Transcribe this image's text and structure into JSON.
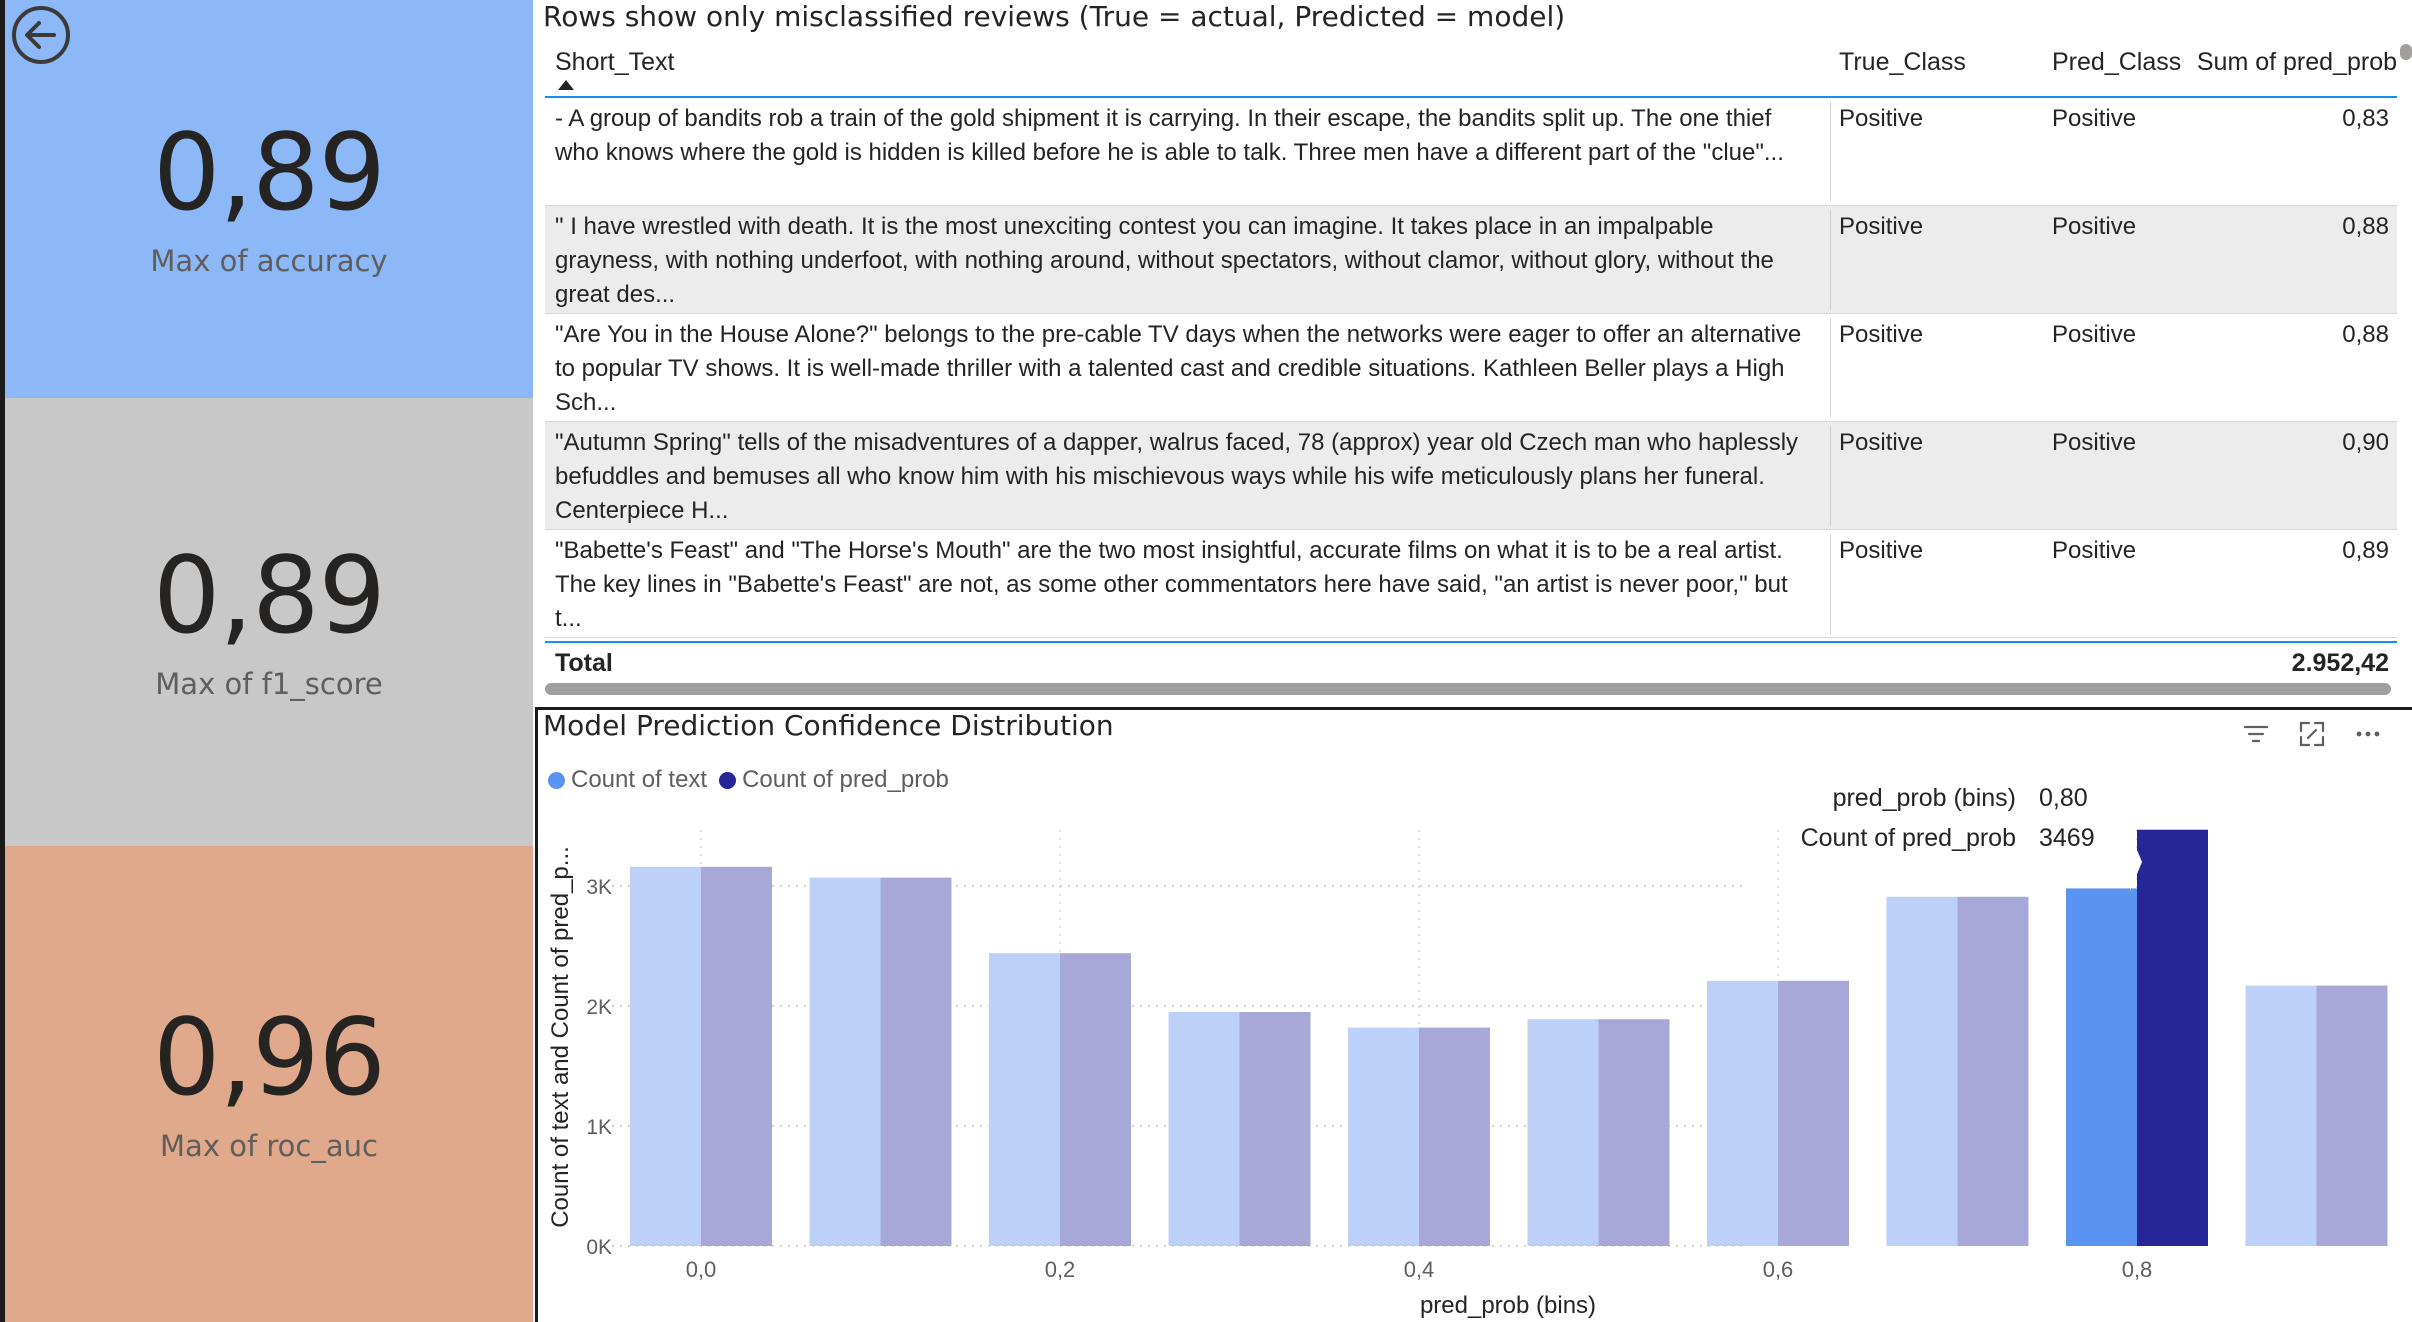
{
  "kpis": [
    {
      "value": "0,89",
      "label": "Max of accuracy"
    },
    {
      "value": "0,89",
      "label": "Max of f1_score"
    },
    {
      "value": "0,96",
      "label": "Max of roc_auc"
    }
  ],
  "table": {
    "title": "Rows show only misclassified reviews (True = actual, Predicted = model)",
    "columns": [
      "Short_Text",
      "True_Class",
      "Pred_Class",
      "Sum of pred_prob"
    ],
    "rows": [
      {
        "text": "- A group of bandits rob a train of the gold shipment it is carrying. In their escape, the bandits split up. The one thief who knows where the gold is hidden is killed before he is able to talk. Three men have a different part of the \"clue\"...",
        "true_class": "Positive",
        "pred_class": "Positive",
        "prob": "0,83"
      },
      {
        "text": "\" I have wrestled with death. It is the most unexciting contest you can imagine. It takes place in an impalpable grayness, with nothing underfoot, with nothing around, without spectators, without clamor, without glory, without the great des...",
        "true_class": "Positive",
        "pred_class": "Positive",
        "prob": "0,88"
      },
      {
        "text": "\"Are You in the House Alone?\" belongs to the pre-cable TV days when the networks were eager to offer an alternative to popular TV shows. It is well-made thriller with a talented cast and credible situations. Kathleen Beller plays a High Sch...",
        "true_class": "Positive",
        "pred_class": "Positive",
        "prob": "0,88"
      },
      {
        "text": "\"Autumn Spring\" tells of the misadventures of a dapper, walrus faced, 78 (approx) year old Czech man who haplessly befuddles and bemuses all who know him with his mischievous ways while his wife meticulously plans her funeral. Centerpiece H...",
        "true_class": "Positive",
        "pred_class": "Positive",
        "prob": "0,90"
      },
      {
        "text": "\"Babette's Feast\" and \"The Horse's Mouth\" are the two most insightful, accurate films on what it is to be a real artist. The key lines in \"Babette's Feast\" are not, as some other commentators here have said, \"an artist is never poor,\" but t...",
        "true_class": "Positive",
        "pred_class": "Positive",
        "prob": "0,89"
      }
    ],
    "total_label": "Total",
    "total_value": "2.952,42"
  },
  "toolbar": {
    "filter_icon": "filter-icon",
    "focus_icon": "focus-mode-icon",
    "more_icon": "more-options-icon"
  },
  "tooltip": {
    "key1": "pred_prob (bins)",
    "val1": "0,80",
    "key2": "Count of pred_prob",
    "val2": "3469"
  },
  "chart_data": {
    "type": "bar",
    "title": "Model Prediction Confidence Distribution",
    "xlabel": "pred_prob (bins)",
    "ylabel": "Count of text and Count of pred_p...",
    "x_bins": [
      0.0,
      0.1,
      0.2,
      0.3,
      0.4,
      0.5,
      0.6,
      0.7,
      0.8,
      0.9
    ],
    "x_tick_labels": [
      {
        "bin": 0.0,
        "label": "0,0"
      },
      {
        "bin": 0.2,
        "label": "0,2"
      },
      {
        "bin": 0.4,
        "label": "0,4"
      },
      {
        "bin": 0.6,
        "label": "0,6"
      },
      {
        "bin": 0.8,
        "label": "0,8"
      }
    ],
    "y_ticks": [
      {
        "value": 0,
        "label": "0K"
      },
      {
        "value": 1000,
        "label": "1K"
      },
      {
        "value": 2000,
        "label": "2K"
      },
      {
        "value": 3000,
        "label": "3K"
      }
    ],
    "ylim": [
      0,
      3500
    ],
    "highlighted_bin": 0.8,
    "series": [
      {
        "name": "Count of text",
        "color": "#5b93f0",
        "faded_color": "#bcd0f8",
        "values": [
          3160,
          3070,
          2440,
          1950,
          1820,
          1890,
          2210,
          2910,
          2980,
          2170
        ]
      },
      {
        "name": "Count of pred_prob",
        "color": "#262699",
        "faded_color": "#a8a8d8",
        "values": [
          3160,
          3070,
          2440,
          1950,
          1820,
          1890,
          2210,
          2910,
          3469,
          2170
        ]
      }
    ],
    "legend_position": "top-left",
    "grid": true
  }
}
